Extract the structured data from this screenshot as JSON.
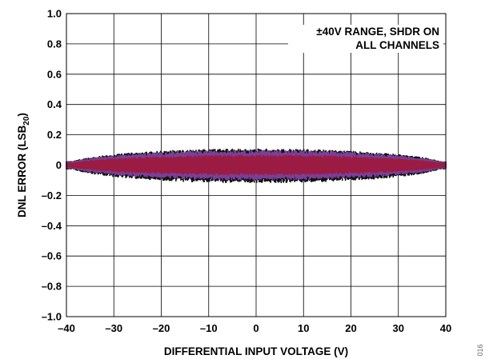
{
  "chart_data": {
    "type": "scatter",
    "title": "",
    "xlabel": "DIFFERENTIAL INPUT VOLTAGE (V)",
    "ylabel_main": "DNL ERROR (LSB",
    "ylabel_sub": "20",
    "ylabel_close": ")",
    "xlim": [
      -40,
      40
    ],
    "ylim": [
      -1.0,
      1.0
    ],
    "x_ticks": [
      -40,
      -30,
      -20,
      -10,
      0,
      10,
      20,
      30,
      40
    ],
    "x_tick_labels": [
      "–40",
      "–30",
      "–20",
      "–10",
      "0",
      "10",
      "20",
      "30",
      "40"
    ],
    "y_ticks": [
      1.0,
      0.8,
      0.6,
      0.4,
      0.2,
      0,
      -0.2,
      -0.4,
      -0.6,
      -0.8,
      -1.0
    ],
    "y_tick_labels": [
      "1.0",
      "0.8",
      "0.6",
      "0.4",
      "0.2",
      "0",
      "–0.2",
      "–0.4",
      "–0.6",
      "–0.8",
      "–1.0"
    ],
    "grid": true,
    "annotation": [
      "±40V RANGE, SHDR ON",
      "ALL CHANNELS"
    ],
    "annotation_placement": "top-right",
    "series": [
      {
        "color": "#1f9bd7",
        "dnl_min": -0.09,
        "dnl_max": 0.1
      },
      {
        "color": "#d99a1e",
        "dnl_min": -0.09,
        "dnl_max": 0.1
      },
      {
        "color": "#2e8b57",
        "dnl_min": -0.09,
        "dnl_max": 0.1
      },
      {
        "color": "#111111",
        "dnl_min": -0.12,
        "dnl_max": 0.11
      },
      {
        "color": "#7a3f98",
        "dnl_min": -0.1,
        "dnl_max": 0.1
      },
      {
        "color": "#9b1b42",
        "dnl_min": -0.07,
        "dnl_max": 0.07
      }
    ],
    "figure_number": "016"
  }
}
